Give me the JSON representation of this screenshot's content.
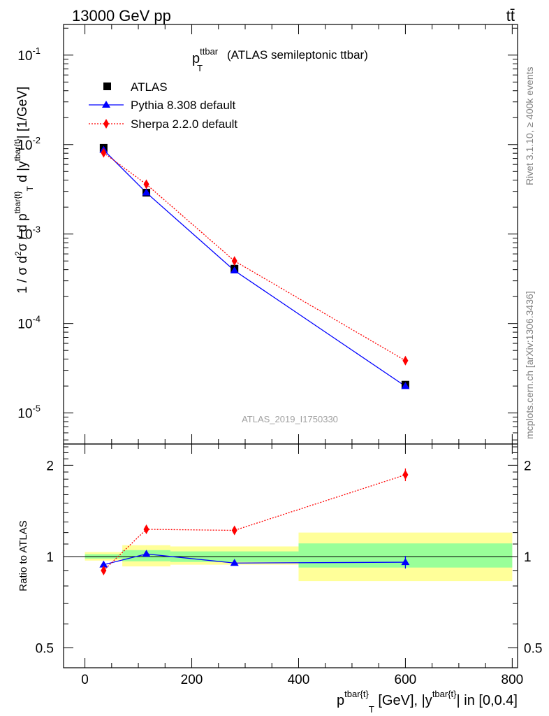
{
  "header": {
    "energy_label": "13000 GeV pp",
    "process_label": "tt̄",
    "analysis_id": "ATLAS_2019_I1750330",
    "rivet_label": "Rivet 3.1.10, ≥ 400k events",
    "mcplots_label": "mcplots.cern.ch [arXiv:1306.3436]"
  },
  "chart_data": [
    {
      "type": "scatter",
      "panel": "main",
      "title": "(ATLAS semileptonic ttbar)",
      "ylabel": "1 / σ d²σ / d p^{tbar{t}}_T d |y^{tbar{t}}| [1/GeV]",
      "yscale": "log",
      "ylim": [
        4.5e-06,
        0.22
      ],
      "xlim": [
        -40,
        810
      ],
      "ytick_labels": [
        "10^-5",
        "10^-4",
        "10^-3",
        "10^-2",
        "10^-1"
      ],
      "legend_position": "top-left",
      "series": [
        {
          "name": "ATLAS",
          "color": "#000000",
          "marker": "square",
          "x": [
            35,
            115,
            280,
            600
          ],
          "y": [
            0.0092,
            0.0029,
            0.00041,
            2.07e-05
          ]
        },
        {
          "name": "Pythia 8.308 default",
          "color": "#0000ff",
          "marker": "triangle",
          "line": "solid",
          "x": [
            35,
            115,
            280,
            600
          ],
          "y": [
            0.0087,
            0.0029,
            0.00039,
            1.99e-05
          ]
        },
        {
          "name": "Sherpa 2.2.0 default",
          "color": "#ff0000",
          "marker": "diamond",
          "line": "dotted",
          "x": [
            35,
            115,
            280,
            600
          ],
          "y": [
            0.0081,
            0.0036,
            0.0005,
            3.85e-05
          ]
        }
      ]
    },
    {
      "type": "scatter",
      "panel": "ratio",
      "ylabel": "Ratio to ATLAS",
      "yscale": "log",
      "ylim": [
        0.43,
        2.35
      ],
      "xlim": [
        -40,
        810
      ],
      "yticks": [
        0.5,
        1,
        2
      ],
      "ytick_labels": [
        "0.5",
        "1",
        "2"
      ],
      "xticks": [
        0,
        200,
        400,
        600,
        800
      ],
      "xtick_labels": [
        "0",
        "200",
        "400",
        "600",
        "800"
      ],
      "xlabel": "p^{tbar{t}}_T [GeV], |y^{tbar{t}}| in [0,0.4]",
      "uncertainty_bands": [
        {
          "x0": 0,
          "x1": 70,
          "inner": [
            0.985,
            1.018
          ],
          "outer": [
            0.97,
            1.035
          ]
        },
        {
          "x0": 70,
          "x1": 160,
          "inner": [
            0.965,
            1.05
          ],
          "outer": [
            0.928,
            1.09
          ]
        },
        {
          "x0": 160,
          "x1": 400,
          "inner": [
            0.96,
            1.04
          ],
          "outer": [
            0.94,
            1.08
          ]
        },
        {
          "x0": 400,
          "x1": 800,
          "inner": [
            0.92,
            1.105
          ],
          "outer": [
            0.83,
            1.2
          ]
        }
      ],
      "band_colors": {
        "inner": "#99ff99",
        "outer": "#ffff99"
      },
      "series": [
        {
          "name": "Pythia 8.308 default",
          "color": "#0000ff",
          "marker": "triangle",
          "line": "solid",
          "x": [
            35,
            115,
            280,
            600
          ],
          "y": [
            0.94,
            1.02,
            0.952,
            0.958
          ]
        },
        {
          "name": "Sherpa 2.2.0 default",
          "color": "#ff0000",
          "marker": "diamond",
          "line": "dotted",
          "x": [
            35,
            115,
            280,
            600
          ],
          "y": [
            0.9,
            1.23,
            1.22,
            1.86
          ]
        }
      ]
    }
  ]
}
